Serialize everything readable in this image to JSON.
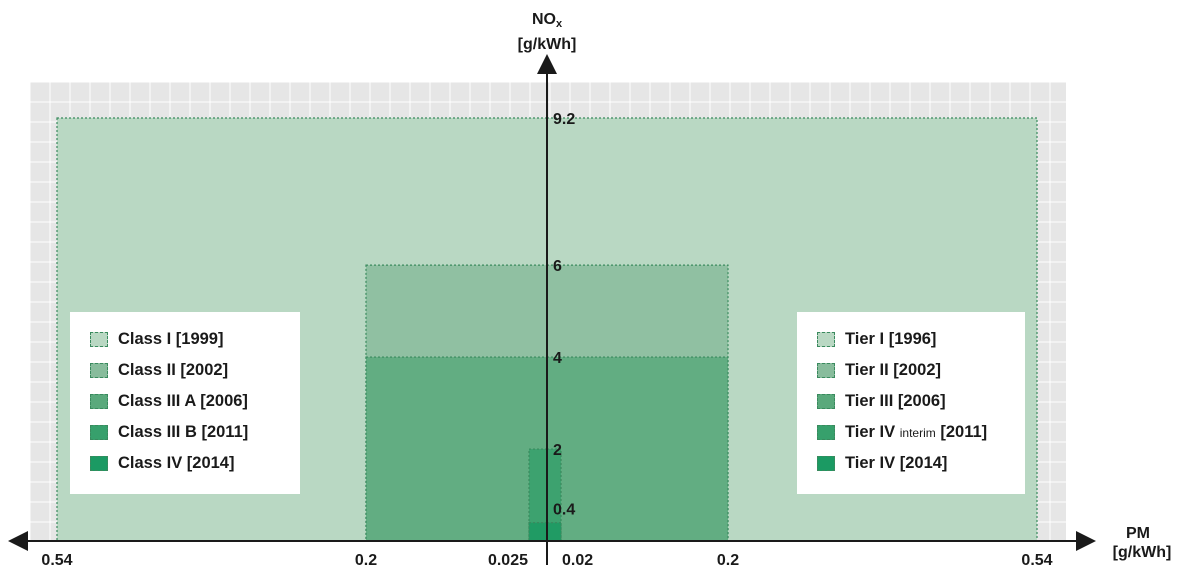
{
  "colors": {
    "background_grid": "#e6e6e6",
    "grid_line": "#ffffff",
    "level1": "#b9d8c3",
    "level2": "#88bc9c",
    "level3": "#5aa97c",
    "level4": "#37a06c",
    "level5": "#1b9a63",
    "outline": "#3a8a5e",
    "axis": "#1a1a1a"
  },
  "chart_data": {
    "type": "area",
    "y_axis": {
      "label_main": "NO",
      "label_sub": "x",
      "unit": "[g/kWh]",
      "ticks": [
        "9.2",
        "6",
        "4",
        "2",
        "0.4"
      ]
    },
    "x_axis": {
      "label": "PM",
      "unit": "[g/kWh]",
      "left_ticks": [
        "0.54",
        "0.2",
        "0.025"
      ],
      "right_ticks": [
        "0.02",
        "0.2",
        "0.54"
      ]
    },
    "left_series": [
      {
        "name": "Class I [1999]",
        "pm": 0.54,
        "nox": 9.2
      },
      {
        "name": "Class II [2002]",
        "pm": 0.2,
        "nox": 6
      },
      {
        "name": "Class III A [2006]",
        "pm": 0.2,
        "nox": 4
      },
      {
        "name": "Class III B [2011]",
        "pm": 0.025,
        "nox": 2
      },
      {
        "name": "Class IV [2014]",
        "pm": 0.025,
        "nox": 0.4
      }
    ],
    "right_series": [
      {
        "name": "Tier I [1996]",
        "pm": 0.54,
        "nox": 9.2
      },
      {
        "name": "Tier II [2002]",
        "pm": 0.2,
        "nox": 6
      },
      {
        "name": "Tier III [2006]",
        "pm": 0.2,
        "nox": 4
      },
      {
        "name": "Tier IV",
        "name_sub": "interim",
        "name_suffix": "[2011]",
        "pm": 0.02,
        "nox": 2
      },
      {
        "name": "Tier IV [2014]",
        "pm": 0.02,
        "nox": 0.4
      }
    ]
  }
}
